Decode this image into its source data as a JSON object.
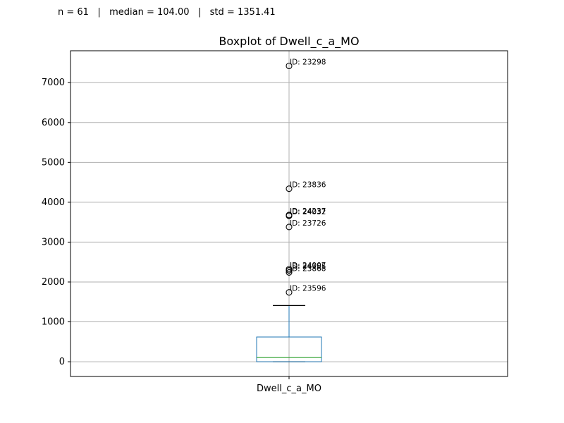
{
  "stats_line": "n = 61   |   median = 104.00   |   std = 1351.41",
  "chart_data": {
    "type": "boxplot",
    "title": "Boxplot of Dwell_c_a_MO",
    "xlabel": "",
    "ylabel": "",
    "categories": [
      "Dwell_c_a_MO"
    ],
    "ylim": [
      -370,
      7800
    ],
    "yticks": [
      0,
      1000,
      2000,
      3000,
      4000,
      5000,
      6000,
      7000
    ],
    "grid": true,
    "box": {
      "whisker_low": 0,
      "q1": 0,
      "median": 104,
      "q3": 620,
      "whisker_high": 1410
    },
    "outliers": [
      {
        "value": 7420,
        "label": "ID: 23298"
      },
      {
        "value": 4340,
        "label": "ID: 23836"
      },
      {
        "value": 3680,
        "label": "ID: 24237"
      },
      {
        "value": 3660,
        "label": "ID: 24032"
      },
      {
        "value": 3380,
        "label": "ID: 23726"
      },
      {
        "value": 2320,
        "label": "ID: 24007"
      },
      {
        "value": 2290,
        "label": "ID: 24155"
      },
      {
        "value": 2240,
        "label": "ID: 23868"
      },
      {
        "value": 1740,
        "label": "ID: 23596"
      }
    ],
    "colors": {
      "box": "#1f77b4",
      "median": "#2ca02c",
      "whisker": "#1f77b4",
      "cap": "#000000",
      "grid": "#b0b0b0",
      "outlier": "#000000"
    }
  }
}
